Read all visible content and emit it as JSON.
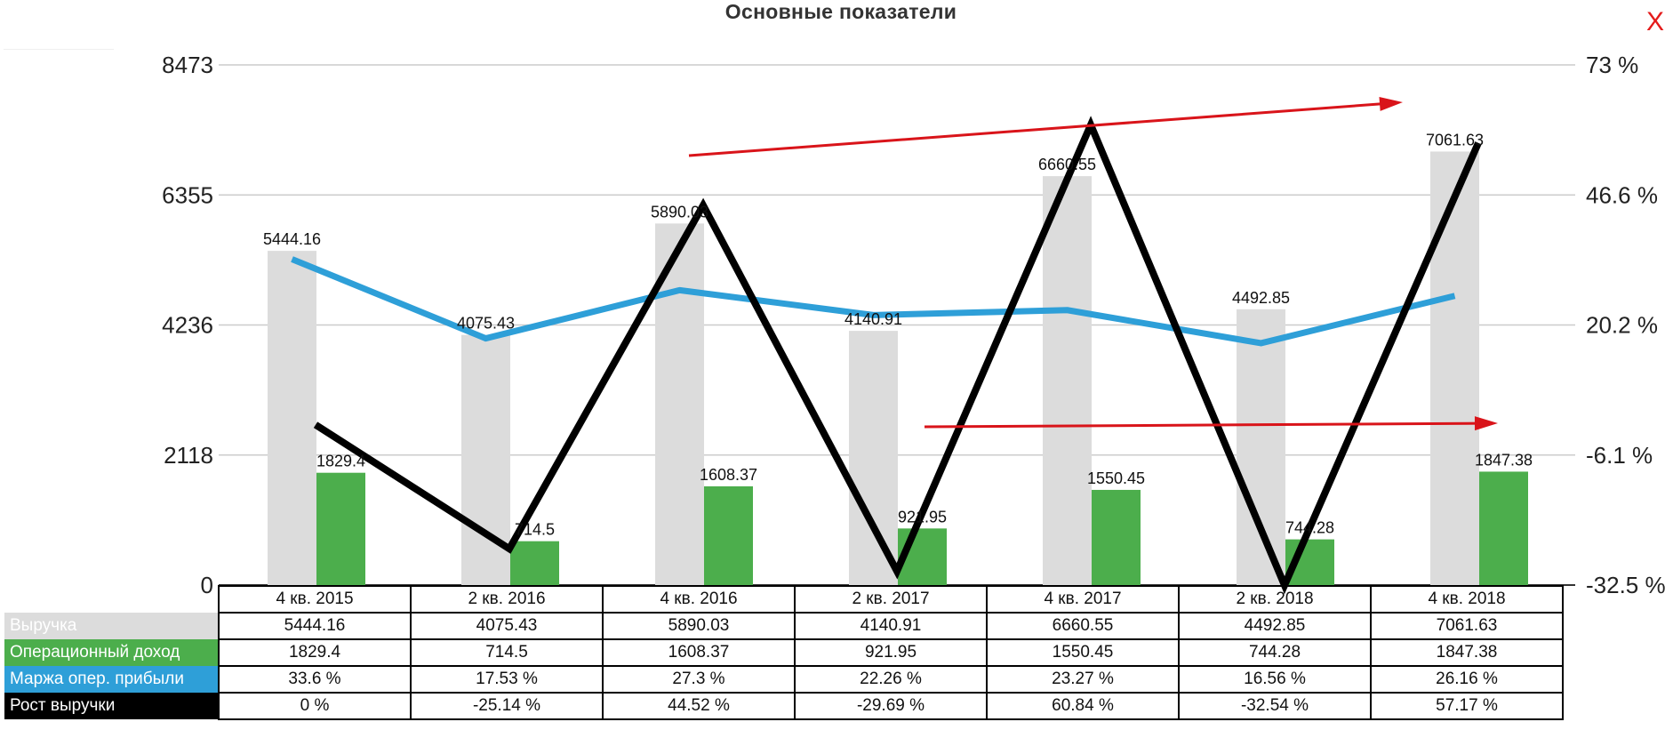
{
  "title": "Основные показатели",
  "close_label": "X",
  "colors": {
    "revenue": "#dcdcdc",
    "op_income": "#4cae4c",
    "margin": "#2e9fd8",
    "growth": "#000000",
    "arrow": "#d9141a",
    "grid": "#cccccc"
  },
  "chart_data": {
    "type": "bar",
    "title": "Основные показатели",
    "categories": [
      "4 кв. 2015",
      "2 кв. 2016",
      "4 кв. 2016",
      "2 кв. 2017",
      "4 кв. 2017",
      "2 кв. 2018",
      "4 кв. 2018"
    ],
    "left_axis": {
      "ticks": [
        "0",
        "2118",
        "4236",
        "6355",
        "8473"
      ],
      "range": [
        0,
        8473
      ]
    },
    "right_axis": {
      "ticks": [
        "-32.5 %",
        "-6.1 %",
        "20.2 %",
        "46.6 %",
        "73 %"
      ],
      "range": [
        -32.5,
        73
      ]
    },
    "grid": true,
    "series": [
      {
        "name": "Выручка",
        "type": "bar",
        "axis": "left",
        "values": [
          5444.16,
          4075.43,
          5890.03,
          4140.91,
          6660.55,
          4492.85,
          7061.63
        ],
        "labels": [
          "5444.16",
          "4075.43",
          "5890.03",
          "4140.91",
          "6660.55",
          "4492.85",
          "7061.63"
        ]
      },
      {
        "name": "Операционный доход",
        "type": "bar",
        "axis": "left",
        "values": [
          1829.4,
          714.5,
          1608.37,
          921.95,
          1550.45,
          744.28,
          1847.38
        ],
        "labels": [
          "1829.4",
          "714.5",
          "1608.37",
          "921.95",
          "1550.45",
          "744.28",
          "1847.38"
        ]
      },
      {
        "name": "Маржа опер. прибыли",
        "type": "line",
        "axis": "right",
        "values": [
          33.6,
          17.53,
          27.3,
          22.26,
          23.27,
          16.56,
          26.16
        ],
        "labels": [
          "33.6 %",
          "17.53 %",
          "27.3 %",
          "22.26 %",
          "23.27 %",
          "16.56 %",
          "26.16 %"
        ]
      },
      {
        "name": "Рост выручки",
        "type": "line",
        "axis": "right",
        "values": [
          0,
          -25.14,
          44.52,
          -29.69,
          60.84,
          -32.54,
          57.17
        ],
        "labels": [
          "0 %",
          "-25.14 %",
          "44.52 %",
          "-29.69 %",
          "60.84 %",
          "-32.54 %",
          "57.17 %"
        ]
      }
    ],
    "annotations": [
      {
        "type": "arrow",
        "color": "#d9141a",
        "note": "upper arrow rising toward 4 кв. 2018"
      },
      {
        "type": "arrow",
        "color": "#d9141a",
        "note": "lower arrow pointing right toward 4 кв. 2018"
      }
    ]
  }
}
